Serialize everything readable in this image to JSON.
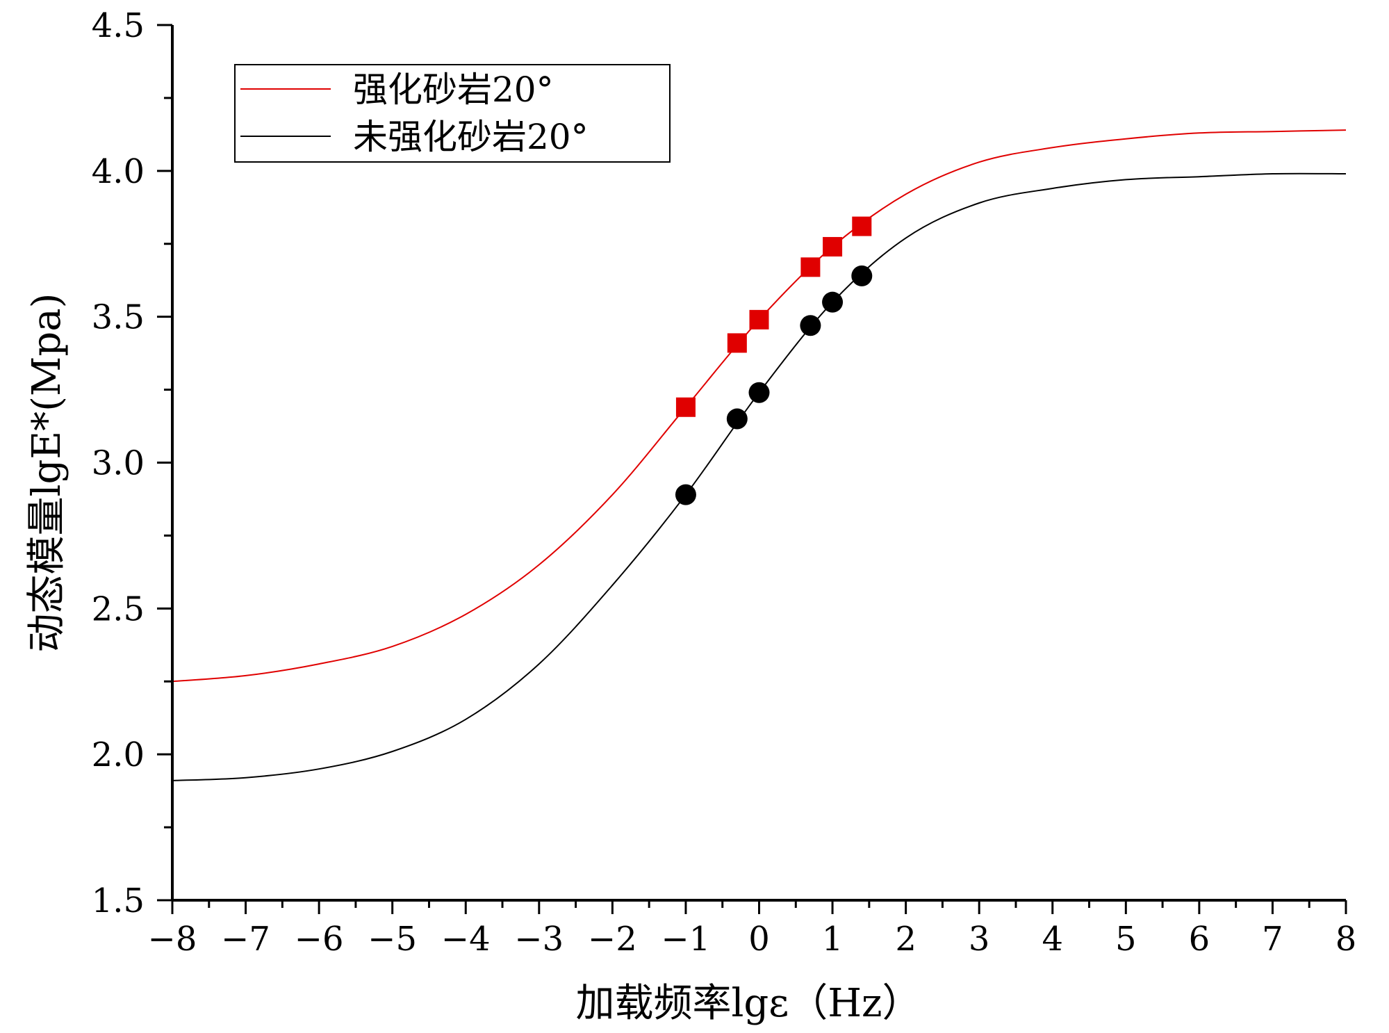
{
  "chart_data": {
    "type": "scatter",
    "title": "",
    "xlabel": "加载频率lgε（Hz）",
    "ylabel": "动态模量lgE*(Mpa)",
    "xlim": [
      -8,
      8
    ],
    "ylim": [
      1.5,
      4.5
    ],
    "x_ticks": [
      -8,
      -7,
      -6,
      -5,
      -4,
      -3,
      -2,
      -1,
      0,
      1,
      2,
      3,
      4,
      5,
      6,
      7,
      8
    ],
    "x_tick_labels": [
      "−8",
      "−7",
      "−6",
      "−5",
      "−4",
      "−3",
      "−2",
      "−1",
      "0",
      "1",
      "2",
      "3",
      "4",
      "5",
      "6",
      "7",
      "8"
    ],
    "y_ticks": [
      1.5,
      2.0,
      2.5,
      3.0,
      3.5,
      4.0,
      4.5
    ],
    "y_tick_labels": [
      "1.5",
      "2.0",
      "2.5",
      "3.0",
      "3.5",
      "4.0",
      "4.5"
    ],
    "grid": false,
    "legend_position": "top-left",
    "series": [
      {
        "name": "强化砂岩20°",
        "color": "#e00000",
        "marker": "square",
        "points": [
          {
            "x": -1.0,
            "y": 3.19
          },
          {
            "x": -0.3,
            "y": 3.41
          },
          {
            "x": 0.0,
            "y": 3.49
          },
          {
            "x": 0.7,
            "y": 3.67
          },
          {
            "x": 1.0,
            "y": 3.74
          },
          {
            "x": 1.4,
            "y": 3.81
          }
        ],
        "fit_curve": [
          {
            "x": -8,
            "y": 2.25
          },
          {
            "x": -7,
            "y": 2.27
          },
          {
            "x": -6,
            "y": 2.31
          },
          {
            "x": -5,
            "y": 2.37
          },
          {
            "x": -4,
            "y": 2.48
          },
          {
            "x": -3,
            "y": 2.65
          },
          {
            "x": -2,
            "y": 2.89
          },
          {
            "x": -1,
            "y": 3.19
          },
          {
            "x": 0,
            "y": 3.49
          },
          {
            "x": 1,
            "y": 3.74
          },
          {
            "x": 2,
            "y": 3.92
          },
          {
            "x": 3,
            "y": 4.03
          },
          {
            "x": 4,
            "y": 4.08
          },
          {
            "x": 5,
            "y": 4.11
          },
          {
            "x": 6,
            "y": 4.13
          },
          {
            "x": 7,
            "y": 4.135
          },
          {
            "x": 8,
            "y": 4.14
          }
        ]
      },
      {
        "name": "未强化砂岩20°",
        "color": "#000000",
        "marker": "circle",
        "points": [
          {
            "x": -1.0,
            "y": 2.89
          },
          {
            "x": -0.3,
            "y": 3.15
          },
          {
            "x": 0.0,
            "y": 3.24
          },
          {
            "x": 0.7,
            "y": 3.47
          },
          {
            "x": 1.0,
            "y": 3.55
          },
          {
            "x": 1.4,
            "y": 3.64
          }
        ],
        "fit_curve": [
          {
            "x": -8,
            "y": 1.91
          },
          {
            "x": -7,
            "y": 1.92
          },
          {
            "x": -6,
            "y": 1.95
          },
          {
            "x": -5,
            "y": 2.01
          },
          {
            "x": -4,
            "y": 2.12
          },
          {
            "x": -3,
            "y": 2.31
          },
          {
            "x": -2,
            "y": 2.58
          },
          {
            "x": -1,
            "y": 2.89
          },
          {
            "x": 0,
            "y": 3.24
          },
          {
            "x": 1,
            "y": 3.55
          },
          {
            "x": 2,
            "y": 3.77
          },
          {
            "x": 3,
            "y": 3.89
          },
          {
            "x": 4,
            "y": 3.94
          },
          {
            "x": 5,
            "y": 3.97
          },
          {
            "x": 6,
            "y": 3.98
          },
          {
            "x": 7,
            "y": 3.99
          },
          {
            "x": 8,
            "y": 3.99
          }
        ]
      }
    ]
  }
}
